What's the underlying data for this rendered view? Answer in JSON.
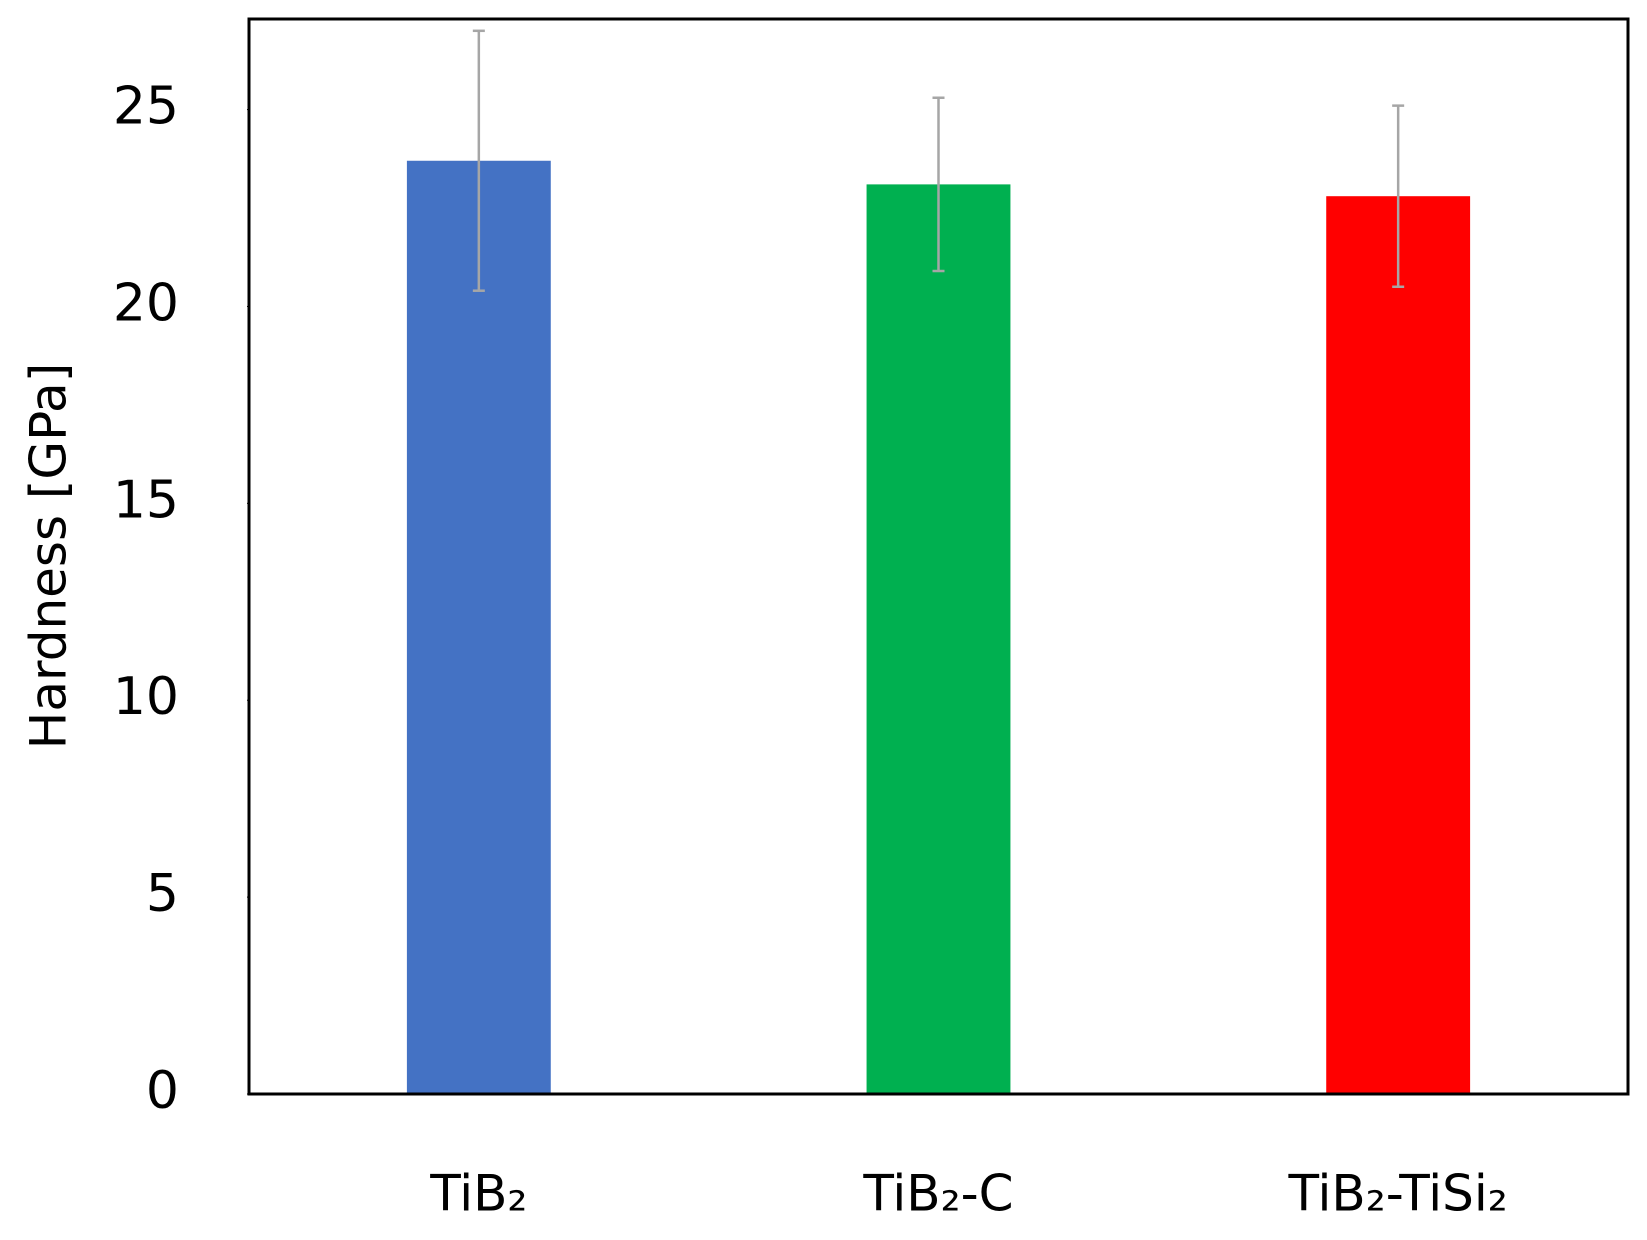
{
  "chart_data": {
    "type": "bar",
    "y_label": "Hardness [GPa]",
    "categories": [
      "TiB₂",
      "TiB₂-C",
      "TiB₂-TiSi₂"
    ],
    "values": [
      23.7,
      23.1,
      22.8
    ],
    "errors": [
      3.3,
      2.2,
      2.3
    ],
    "colors": [
      "#4472c4",
      "#00b050",
      "#ff0000"
    ],
    "error_color": "#a6a6a6",
    "ylim": [
      0,
      27.3
    ],
    "yticks": [
      0,
      5,
      10,
      15,
      20,
      25
    ],
    "grid": false
  }
}
